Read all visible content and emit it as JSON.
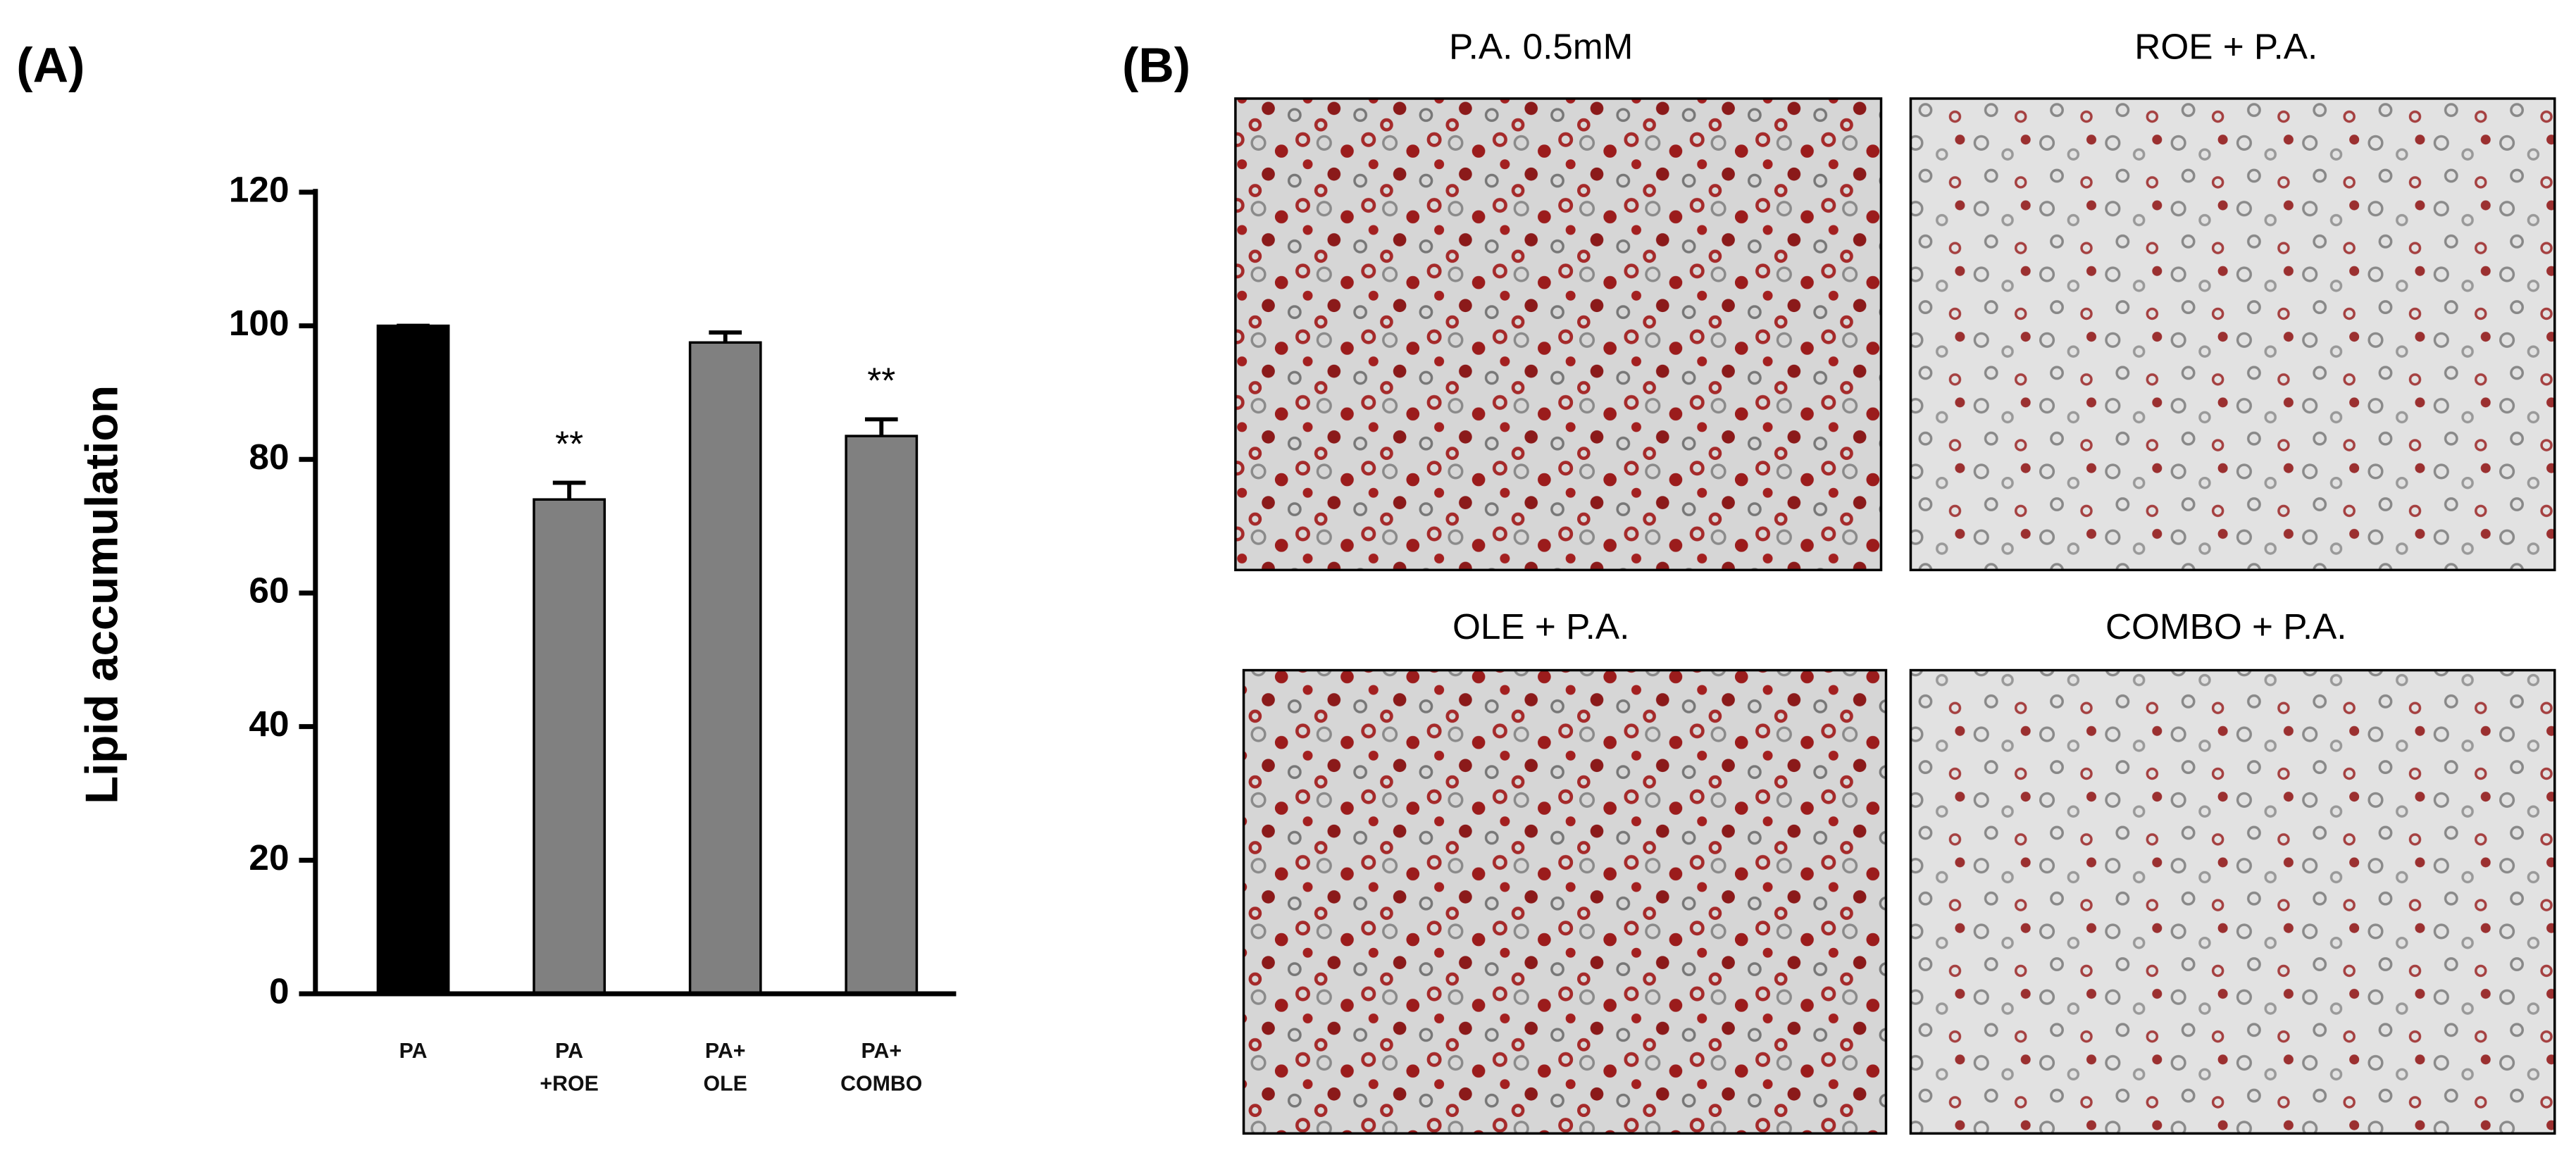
{
  "panel_a_label": "(A)",
  "chart_data": {
    "type": "bar",
    "y_label": "Lipid accumulation",
    "categories": [
      "PA",
      "PA\n+ROE",
      "PA+\nOLE",
      "PA+\nCOMBO"
    ],
    "values": [
      100,
      74,
      97.5,
      83.5
    ],
    "errors": [
      0,
      2.5,
      1.5,
      2.5
    ],
    "annotations": [
      null,
      "**",
      null,
      "**"
    ],
    "colors": [
      "#000000",
      "#808080",
      "#808080",
      "#808080"
    ],
    "ylim": [
      0,
      120
    ],
    "yticks": [
      0,
      20,
      40,
      60,
      80,
      100,
      120
    ]
  },
  "micrographs": {
    "label": "(B)",
    "images": [
      {
        "title": "P.A. 0.5mM"
      },
      {
        "title": "ROE + P.A."
      },
      {
        "title": "OLE + P.A."
      },
      {
        "title": "COMBO + P.A."
      }
    ]
  }
}
